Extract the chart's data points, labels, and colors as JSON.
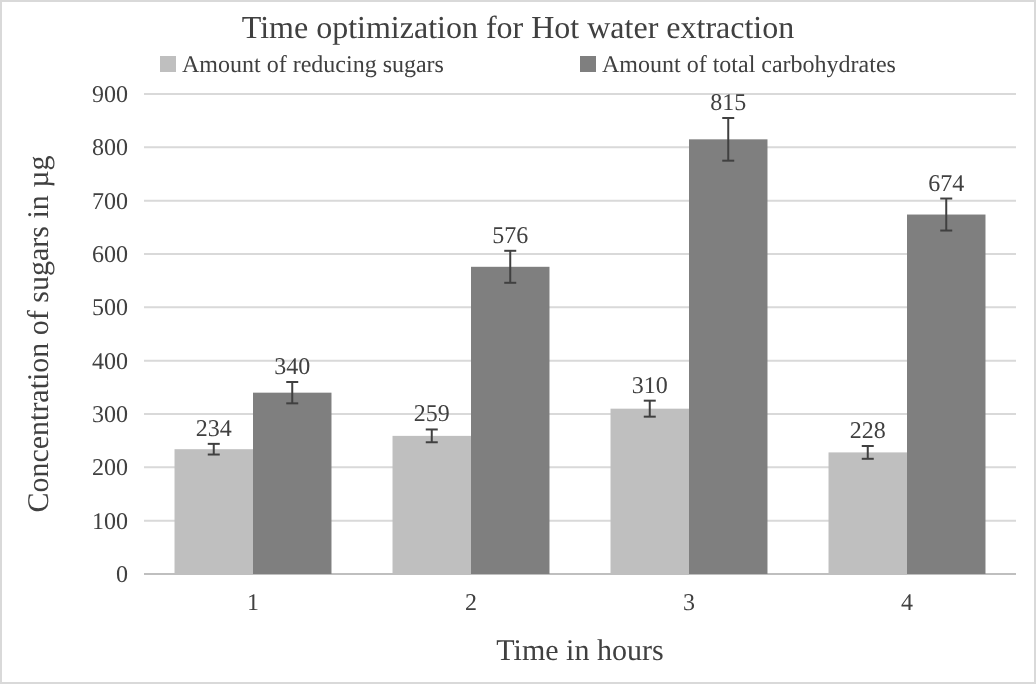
{
  "chart_data": {
    "type": "bar",
    "title": "Time optimization for Hot water extraction",
    "xlabel": "Time in hours",
    "ylabel": "Concentration of sugars in µg",
    "categories": [
      "1",
      "2",
      "3",
      "4"
    ],
    "series": [
      {
        "name": "Amount of reducing sugars",
        "color": "#bfbfbf",
        "values": [
          234,
          259,
          310,
          228
        ],
        "errors": [
          10,
          12,
          15,
          12
        ]
      },
      {
        "name": "Amount of total carbohydrates",
        "color": "#7f7f7f",
        "values": [
          340,
          576,
          815,
          674
        ],
        "errors": [
          20,
          30,
          40,
          30
        ]
      }
    ],
    "ylim": [
      0,
      900
    ],
    "yticks": [
      0,
      100,
      200,
      300,
      400,
      500,
      600,
      700,
      800,
      900
    ],
    "grid": "y",
    "legend": "top",
    "data_labels": true
  }
}
